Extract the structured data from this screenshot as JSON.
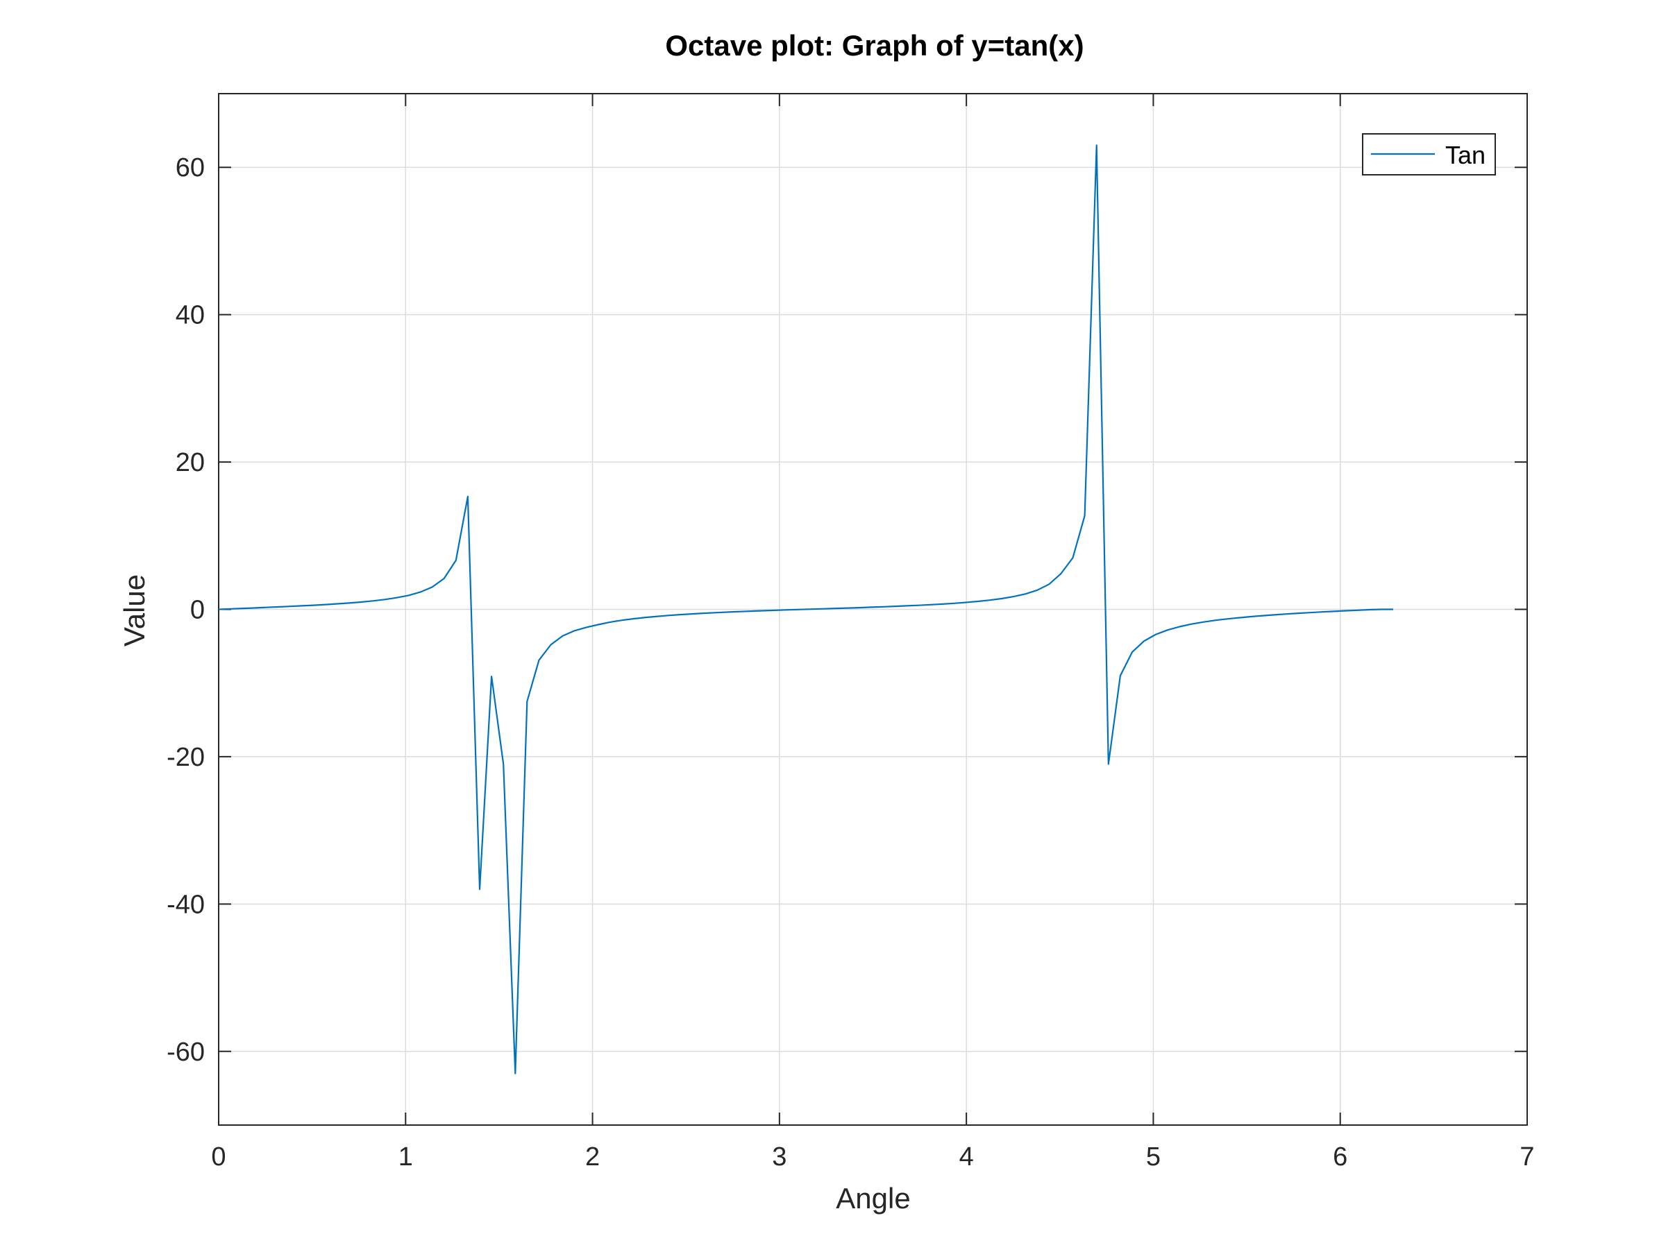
{
  "chart_data": {
    "type": "line",
    "title": "Octave plot: Graph of y=tan(x)",
    "xlabel": "Angle",
    "ylabel": "Value",
    "xlim": [
      0,
      7
    ],
    "ylim": [
      -70,
      70
    ],
    "xticks": [
      0,
      1,
      2,
      3,
      4,
      5,
      6,
      7
    ],
    "yticks": [
      -60,
      -40,
      -20,
      0,
      20,
      40,
      60
    ],
    "xtick_labels": [
      "0",
      "1",
      "2",
      "3",
      "4",
      "5",
      "6",
      "7"
    ],
    "ytick_labels": [
      "-60",
      "-40",
      "-20",
      "0",
      "20",
      "40",
      "60"
    ],
    "grid": true,
    "legend_position": "top-right",
    "series": [
      {
        "name": "Tan",
        "color": "#0072bd",
        "x": [
          0,
          0.0635,
          0.1269,
          0.1904,
          0.2539,
          0.3173,
          0.3808,
          0.4443,
          0.5077,
          0.5712,
          0.6347,
          0.6981,
          0.7616,
          0.8251,
          0.8885,
          0.952,
          1.0155,
          1.0789,
          1.1424,
          1.2059,
          1.2693,
          1.3328,
          1.3963,
          1.4597,
          1.5232,
          1.5867,
          1.6501,
          1.7136,
          1.7771,
          1.8405,
          1.904,
          1.9675,
          2.0309,
          2.0944,
          2.1579,
          2.2213,
          2.2848,
          2.3483,
          2.4117,
          2.4752,
          2.5387,
          2.6021,
          2.6656,
          2.7291,
          2.7925,
          2.856,
          2.9195,
          2.9829,
          3.0464,
          3.1099,
          3.1733,
          3.2368,
          3.3003,
          3.3637,
          3.4272,
          3.4907,
          3.5541,
          3.6176,
          3.6811,
          3.7445,
          3.808,
          3.8715,
          3.9349,
          3.9984,
          4.0619,
          4.1253,
          4.1888,
          4.2523,
          4.3157,
          4.3792,
          4.4427,
          4.5061,
          4.5696,
          4.6331,
          4.6965,
          4.76,
          4.8235,
          4.8869,
          4.9504,
          5.0139,
          5.0773,
          5.1408,
          5.2043,
          5.2677,
          5.3312,
          5.3947,
          5.4581,
          5.5216,
          5.5851,
          5.6485,
          5.712,
          5.7755,
          5.8389,
          5.9024,
          5.9659,
          6.0293,
          6.0928,
          6.1563,
          6.2197,
          6.2832
        ],
        "y": [
          0,
          0.0636,
          0.1276,
          0.1927,
          0.2594,
          0.3285,
          0.4008,
          0.4774,
          0.5596,
          0.6492,
          0.7486,
          0.8613,
          0.9917,
          1.1467,
          1.3368,
          1.5777,
          1.8955,
          2.3419,
          3.0181,
          4.1905,
          6.6495,
          15.3136,
          -38.0,
          -9.1,
          -21.0,
          -63.0,
          -12.5,
          -6.9,
          -4.8,
          -3.6,
          -2.9,
          -2.44,
          -2.07,
          -1.73,
          -1.48,
          -1.27,
          -1.09,
          -0.95,
          -0.82,
          -0.71,
          -0.61,
          -0.52,
          -0.44,
          -0.37,
          -0.3,
          -0.24,
          -0.18,
          -0.12,
          -0.07,
          -0.02,
          0.03,
          0.08,
          0.13,
          0.18,
          0.23,
          0.29,
          0.35,
          0.41,
          0.48,
          0.55,
          0.63,
          0.72,
          0.82,
          0.94,
          1.08,
          1.25,
          1.46,
          1.73,
          2.09,
          2.61,
          3.42,
          4.85,
          7.0,
          12.7,
          63.0,
          -21.0,
          -9.0,
          -5.8,
          -4.3,
          -3.4,
          -2.8,
          -2.35,
          -2.0,
          -1.72,
          -1.49,
          -1.3,
          -1.14,
          -0.99,
          -0.86,
          -0.74,
          -0.63,
          -0.53,
          -0.44,
          -0.35,
          -0.27,
          -0.19,
          -0.12,
          -0.05,
          0.0,
          0.0
        ]
      }
    ]
  }
}
